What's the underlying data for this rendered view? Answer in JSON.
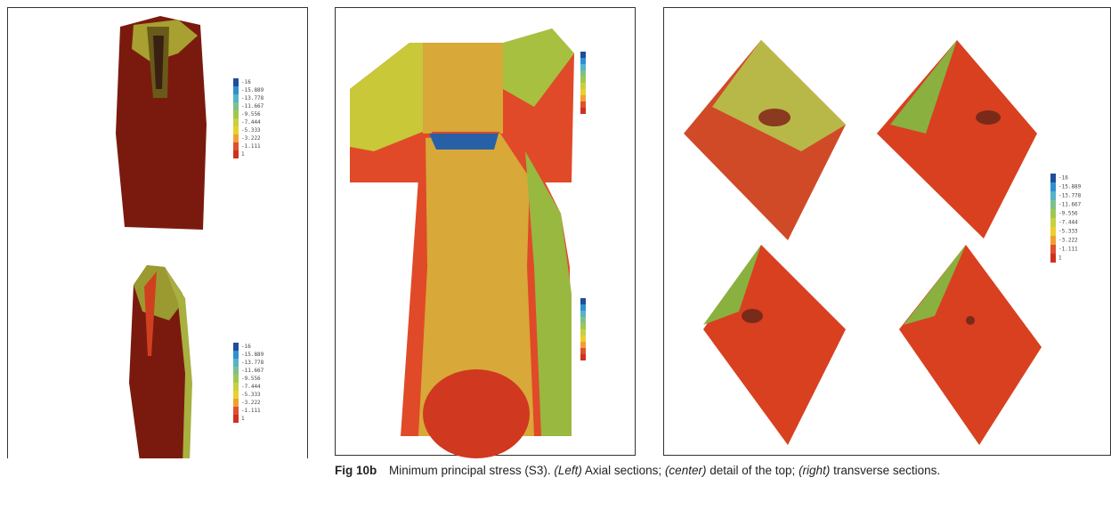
{
  "figure": {
    "legend_values": [
      "-16",
      "-15.889",
      "-13.778",
      "-11.667",
      "-9.556",
      "-7.444",
      "-5.333",
      "-3.222",
      "-1.111",
      "1"
    ],
    "caption": {
      "label": "Fig 10b",
      "segments": [
        "Minimum principal stress (S3).",
        "(Left)",
        "Axial sections;",
        "(center)",
        "detail of the top;",
        "(right)",
        "transverse sections."
      ]
    }
  }
}
